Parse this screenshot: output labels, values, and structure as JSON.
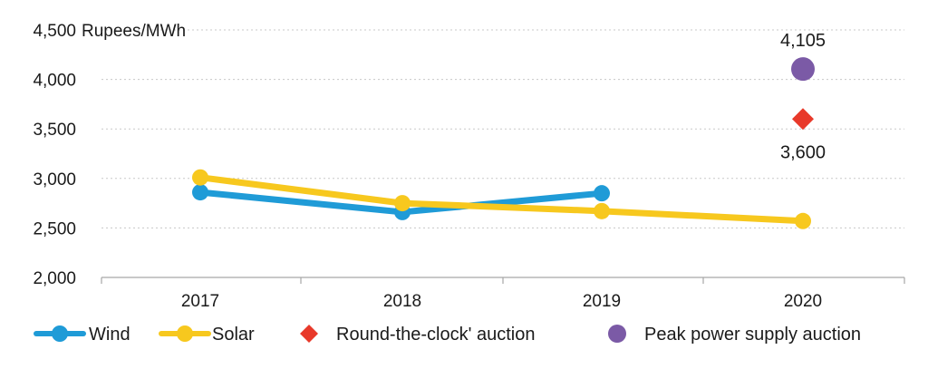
{
  "chart_data": {
    "type": "line",
    "ylabel": "Rupees/MWh",
    "ylim": [
      2000,
      4500
    ],
    "yticks": [
      "2,000",
      "2,500",
      "3,000",
      "3,500",
      "4,000",
      "4,500"
    ],
    "ytick_values": [
      2000,
      2500,
      3000,
      3500,
      4000,
      4500
    ],
    "categories": [
      "2017",
      "2018",
      "2019",
      "2020"
    ],
    "grid": "horizontal dotted",
    "legend_position": "bottom",
    "series": [
      {
        "name": "Wind",
        "values": [
          2860,
          2660,
          2850,
          null
        ],
        "color": "#1f9bd7",
        "marker": "circle",
        "style": "line"
      },
      {
        "name": "Solar",
        "values": [
          3010,
          2750,
          2670,
          2570
        ],
        "color": "#f7c81e",
        "marker": "circle",
        "style": "line"
      },
      {
        "name": "Round-the-clock' auction",
        "values": [
          null,
          null,
          null,
          3600
        ],
        "color": "#e8392a",
        "marker": "diamond",
        "style": "marker",
        "label": "3,600"
      },
      {
        "name": "Peak power supply auction",
        "values": [
          null,
          null,
          null,
          4105
        ],
        "color": "#7b5aa6",
        "marker": "circle",
        "style": "marker",
        "label": "4,105"
      }
    ]
  }
}
